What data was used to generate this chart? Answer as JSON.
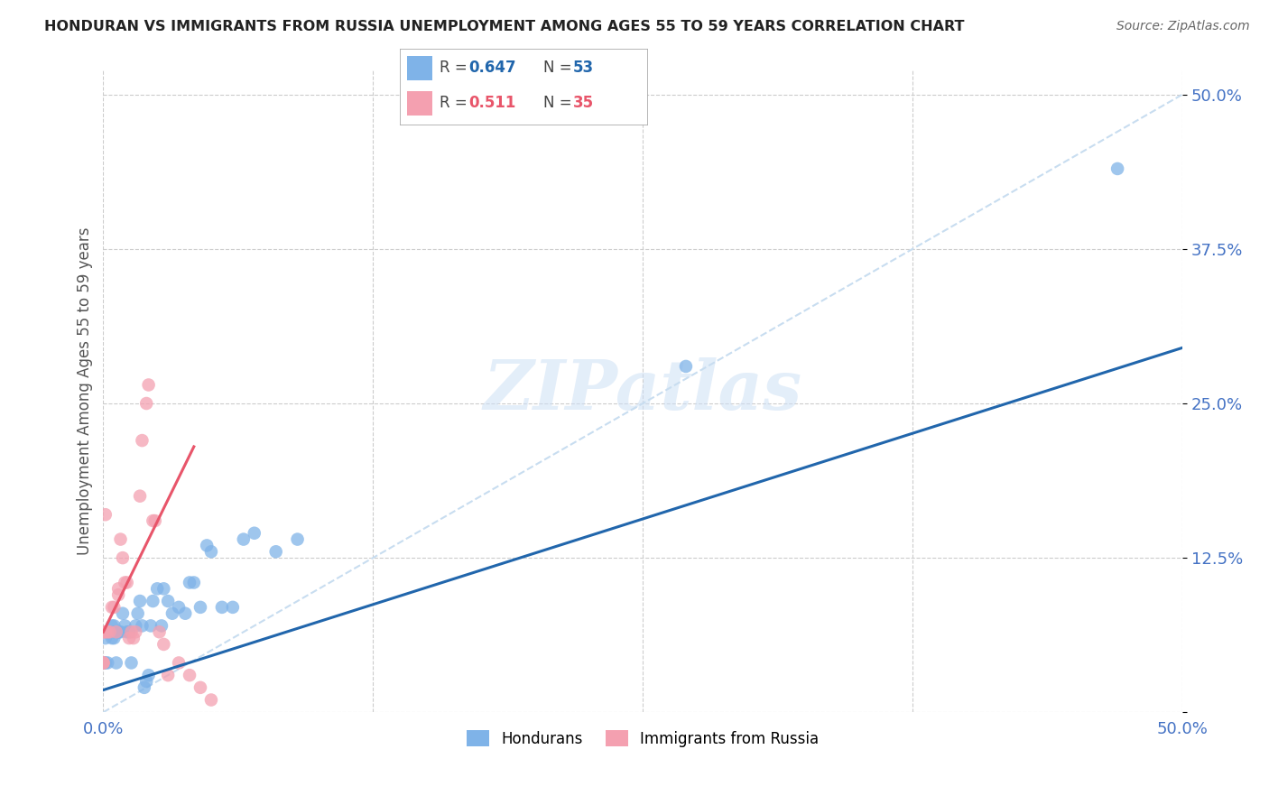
{
  "title": "HONDURAN VS IMMIGRANTS FROM RUSSIA UNEMPLOYMENT AMONG AGES 55 TO 59 YEARS CORRELATION CHART",
  "source": "Source: ZipAtlas.com",
  "ylabel": "Unemployment Among Ages 55 to 59 years",
  "xlim": [
    0.0,
    0.5
  ],
  "ylim": [
    0.0,
    0.52
  ],
  "xticks": [
    0.0,
    0.125,
    0.25,
    0.375,
    0.5
  ],
  "yticks": [
    0.0,
    0.125,
    0.25,
    0.375,
    0.5
  ],
  "xtick_labels": [
    "0.0%",
    "",
    "",
    "",
    "50.0%"
  ],
  "ytick_labels": [
    "",
    "12.5%",
    "25.0%",
    "37.5%",
    "50.0%"
  ],
  "grid_color": "#cccccc",
  "background_color": "#ffffff",
  "watermark": "ZIPatlas",
  "color_honduran": "#7fb3e8",
  "color_russia": "#f4a0b0",
  "color_line_honduran": "#2166ac",
  "color_line_russia": "#e8556a",
  "color_dashed": "#c8ddf0",
  "color_dashed_russia": "#f0c8d0",
  "honduran_scatter_x": [
    0.0,
    0.0,
    0.0,
    0.0,
    0.001,
    0.001,
    0.002,
    0.002,
    0.003,
    0.003,
    0.004,
    0.004,
    0.005,
    0.005,
    0.005,
    0.006,
    0.007,
    0.007,
    0.008,
    0.009,
    0.01,
    0.011,
    0.012,
    0.013,
    0.015,
    0.016,
    0.017,
    0.018,
    0.019,
    0.02,
    0.021,
    0.022,
    0.023,
    0.025,
    0.027,
    0.028,
    0.03,
    0.032,
    0.035,
    0.038,
    0.04,
    0.042,
    0.045,
    0.048,
    0.05,
    0.055,
    0.06,
    0.065,
    0.07,
    0.08,
    0.09,
    0.27,
    0.47
  ],
  "honduran_scatter_y": [
    0.04,
    0.04,
    0.04,
    0.04,
    0.06,
    0.04,
    0.065,
    0.04,
    0.065,
    0.065,
    0.07,
    0.06,
    0.07,
    0.065,
    0.06,
    0.04,
    0.065,
    0.065,
    0.065,
    0.08,
    0.07,
    0.065,
    0.065,
    0.04,
    0.07,
    0.08,
    0.09,
    0.07,
    0.02,
    0.025,
    0.03,
    0.07,
    0.09,
    0.1,
    0.07,
    0.1,
    0.09,
    0.08,
    0.085,
    0.08,
    0.105,
    0.105,
    0.085,
    0.135,
    0.13,
    0.085,
    0.085,
    0.14,
    0.145,
    0.13,
    0.14,
    0.28,
    0.44
  ],
  "russia_scatter_x": [
    0.0,
    0.0,
    0.0,
    0.0,
    0.0,
    0.001,
    0.002,
    0.003,
    0.004,
    0.005,
    0.006,
    0.007,
    0.007,
    0.008,
    0.009,
    0.01,
    0.011,
    0.012,
    0.013,
    0.014,
    0.015,
    0.017,
    0.018,
    0.02,
    0.021,
    0.023,
    0.024,
    0.026,
    0.028,
    0.03,
    0.035,
    0.04,
    0.045,
    0.05,
    0.001
  ],
  "russia_scatter_y": [
    0.04,
    0.04,
    0.04,
    0.065,
    0.065,
    0.065,
    0.065,
    0.065,
    0.085,
    0.085,
    0.065,
    0.1,
    0.095,
    0.14,
    0.125,
    0.105,
    0.105,
    0.06,
    0.065,
    0.06,
    0.065,
    0.175,
    0.22,
    0.25,
    0.265,
    0.155,
    0.155,
    0.065,
    0.055,
    0.03,
    0.04,
    0.03,
    0.02,
    0.01,
    0.16
  ],
  "honduran_line_x0": 0.0,
  "honduran_line_y0": 0.018,
  "honduran_line_x1": 0.5,
  "honduran_line_y1": 0.295,
  "russia_line_x0": 0.0,
  "russia_line_y0": 0.065,
  "russia_line_x1": 0.042,
  "russia_line_y1": 0.215,
  "diag_line_x0": 0.0,
  "diag_line_y0": 0.0,
  "diag_line_x1": 0.5,
  "diag_line_y1": 0.5
}
